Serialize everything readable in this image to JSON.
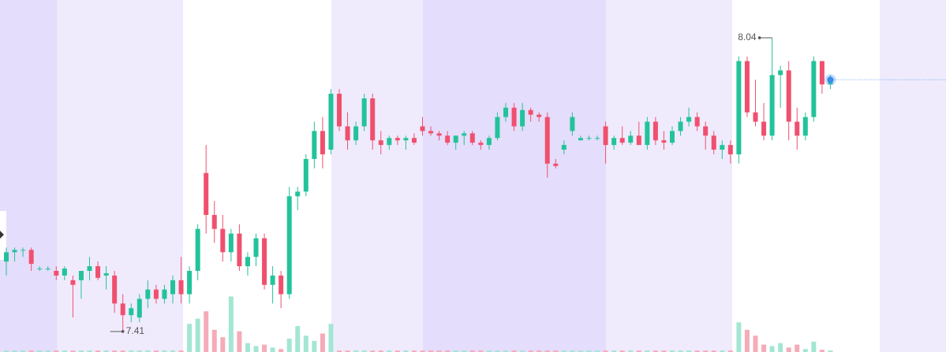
{
  "chart_data": {
    "type": "candlestick",
    "up_color": "#22c39a",
    "down_color": "#f0506e",
    "volume_up_color": "#a3e6d3",
    "volume_down_color": "#f6abb8",
    "ylim": [
      7.366,
      8.121
    ],
    "volume_lim": [
      0,
      100
    ],
    "high_label": 8.04,
    "high_index": 92,
    "low_label": 7.41,
    "low_index": 14,
    "ohlc": [
      [
        7.56,
        7.59,
        7.53,
        7.58
      ],
      [
        7.58,
        7.59,
        7.56,
        7.585
      ],
      [
        7.585,
        7.59,
        7.57,
        7.585
      ],
      [
        7.585,
        7.59,
        7.54,
        7.555
      ],
      [
        7.545,
        7.55,
        7.54,
        7.545
      ],
      [
        7.545,
        7.55,
        7.54,
        7.545
      ],
      [
        7.54,
        7.55,
        7.52,
        7.53
      ],
      [
        7.53,
        7.55,
        7.52,
        7.545
      ],
      [
        7.52,
        7.53,
        7.44,
        7.51
      ],
      [
        7.52,
        7.54,
        7.48,
        7.54
      ],
      [
        7.54,
        7.57,
        7.52,
        7.55
      ],
      [
        7.55,
        7.56,
        7.52,
        7.525
      ],
      [
        7.53,
        7.55,
        7.5,
        7.535
      ],
      [
        7.53,
        7.54,
        7.45,
        7.47
      ],
      [
        7.47,
        7.49,
        7.41,
        7.445
      ],
      [
        7.445,
        7.47,
        7.43,
        7.46
      ],
      [
        7.44,
        7.49,
        7.43,
        7.48
      ],
      [
        7.48,
        7.52,
        7.46,
        7.5
      ],
      [
        7.5,
        7.51,
        7.47,
        7.48
      ],
      [
        7.48,
        7.51,
        7.47,
        7.5
      ],
      [
        7.49,
        7.53,
        7.47,
        7.52
      ],
      [
        7.52,
        7.57,
        7.47,
        7.49
      ],
      [
        7.49,
        7.55,
        7.47,
        7.54
      ],
      [
        7.54,
        7.64,
        7.52,
        7.63
      ],
      [
        7.75,
        7.81,
        7.62,
        7.66
      ],
      [
        7.66,
        7.69,
        7.6,
        7.63
      ],
      [
        7.63,
        7.66,
        7.56,
        7.58
      ],
      [
        7.58,
        7.63,
        7.56,
        7.62
      ],
      [
        7.62,
        7.64,
        7.54,
        7.55
      ],
      [
        7.55,
        7.58,
        7.53,
        7.57
      ],
      [
        7.57,
        7.62,
        7.55,
        7.61
      ],
      [
        7.61,
        7.62,
        7.5,
        7.51
      ],
      [
        7.51,
        7.55,
        7.47,
        7.53
      ],
      [
        7.53,
        7.54,
        7.46,
        7.49
      ],
      [
        7.49,
        7.72,
        7.48,
        7.7
      ],
      [
        7.7,
        7.72,
        7.67,
        7.71
      ],
      [
        7.71,
        7.79,
        7.7,
        7.78
      ],
      [
        7.78,
        7.86,
        7.76,
        7.84
      ],
      [
        7.84,
        7.87,
        7.76,
        7.79
      ],
      [
        7.8,
        7.93,
        7.79,
        7.92
      ],
      [
        7.92,
        7.93,
        7.84,
        7.85
      ],
      [
        7.85,
        7.88,
        7.8,
        7.82
      ],
      [
        7.82,
        7.86,
        7.81,
        7.85
      ],
      [
        7.85,
        7.92,
        7.84,
        7.91
      ],
      [
        7.91,
        7.92,
        7.8,
        7.82
      ],
      [
        7.82,
        7.84,
        7.79,
        7.81
      ],
      [
        7.81,
        7.83,
        7.8,
        7.825
      ],
      [
        7.825,
        7.83,
        7.81,
        7.82
      ],
      [
        7.82,
        7.83,
        7.8,
        7.825
      ],
      [
        7.825,
        7.835,
        7.81,
        7.815
      ],
      [
        7.85,
        7.87,
        7.83,
        7.84
      ],
      [
        7.84,
        7.85,
        7.83,
        7.835
      ],
      [
        7.835,
        7.84,
        7.82,
        7.83
      ],
      [
        7.83,
        7.84,
        7.81,
        7.815
      ],
      [
        7.815,
        7.83,
        7.8,
        7.83
      ],
      [
        7.83,
        7.84,
        7.81,
        7.835
      ],
      [
        7.835,
        7.84,
        7.81,
        7.815
      ],
      [
        7.815,
        7.82,
        7.8,
        7.81
      ],
      [
        7.81,
        7.83,
        7.8,
        7.825
      ],
      [
        7.825,
        7.88,
        7.82,
        7.87
      ],
      [
        7.87,
        7.9,
        7.86,
        7.89
      ],
      [
        7.89,
        7.9,
        7.84,
        7.85
      ],
      [
        7.85,
        7.9,
        7.84,
        7.885
      ],
      [
        7.885,
        7.89,
        7.86,
        7.875
      ],
      [
        7.875,
        7.88,
        7.86,
        7.87
      ],
      [
        7.87,
        7.88,
        7.74,
        7.77
      ],
      [
        7.77,
        7.78,
        7.76,
        7.765
      ],
      [
        7.8,
        7.82,
        7.79,
        7.81
      ],
      [
        7.84,
        7.88,
        7.83,
        7.87
      ],
      [
        7.82,
        7.83,
        7.82,
        7.825
      ],
      [
        7.825,
        7.83,
        7.82,
        7.825
      ],
      [
        7.825,
        7.83,
        7.82,
        7.825
      ],
      [
        7.85,
        7.86,
        7.77,
        7.81
      ],
      [
        7.81,
        7.83,
        7.8,
        7.825
      ],
      [
        7.825,
        7.85,
        7.81,
        7.815
      ],
      [
        7.815,
        7.84,
        7.81,
        7.83
      ],
      [
        7.83,
        7.86,
        7.81,
        7.81
      ],
      [
        7.81,
        7.87,
        7.8,
        7.86
      ],
      [
        7.86,
        7.87,
        7.81,
        7.82
      ],
      [
        7.82,
        7.84,
        7.8,
        7.815
      ],
      [
        7.815,
        7.85,
        7.81,
        7.84
      ],
      [
        7.84,
        7.87,
        7.83,
        7.86
      ],
      [
        7.86,
        7.89,
        7.85,
        7.87
      ],
      [
        7.87,
        7.88,
        7.84,
        7.85
      ],
      [
        7.85,
        7.86,
        7.8,
        7.83
      ],
      [
        7.83,
        7.84,
        7.79,
        7.8
      ],
      [
        7.8,
        7.82,
        7.78,
        7.81
      ],
      [
        7.81,
        7.82,
        7.77,
        7.79
      ],
      [
        7.79,
        8.0,
        7.77,
        7.99
      ],
      [
        7.99,
        8.0,
        7.87,
        7.88
      ],
      [
        7.88,
        7.95,
        7.85,
        7.86
      ],
      [
        7.86,
        7.9,
        7.82,
        7.83
      ],
      [
        7.83,
        8.04,
        7.82,
        7.96
      ],
      [
        7.96,
        7.98,
        7.89,
        7.97
      ],
      [
        7.97,
        7.99,
        7.82,
        7.86
      ],
      [
        7.86,
        7.89,
        7.8,
        7.83
      ],
      [
        7.83,
        7.88,
        7.82,
        7.87
      ],
      [
        7.87,
        8.0,
        7.86,
        7.99
      ],
      [
        7.99,
        7.99,
        7.92,
        7.94
      ],
      [
        7.94,
        7.96,
        7.93,
        7.95
      ]
    ],
    "volume": [
      2,
      2,
      2,
      2,
      2,
      2,
      2,
      2,
      2,
      2,
      2,
      2,
      2,
      2,
      2,
      2,
      2,
      2,
      2,
      2,
      2,
      2,
      38,
      45,
      55,
      30,
      20,
      75,
      28,
      12,
      8,
      10,
      6,
      4,
      18,
      35,
      22,
      15,
      25,
      38,
      2,
      2,
      2,
      2,
      2,
      2,
      2,
      2,
      2,
      2,
      2,
      2,
      2,
      2,
      2,
      2,
      2,
      2,
      2,
      2,
      2,
      2,
      2,
      2,
      2,
      2,
      2,
      2,
      2,
      2,
      2,
      2,
      2,
      2,
      2,
      2,
      2,
      2,
      2,
      2,
      2,
      2,
      2,
      2,
      2,
      2,
      2,
      2,
      40,
      30,
      22,
      10,
      8,
      12,
      6,
      10,
      4,
      14,
      3,
      2
    ]
  }
}
